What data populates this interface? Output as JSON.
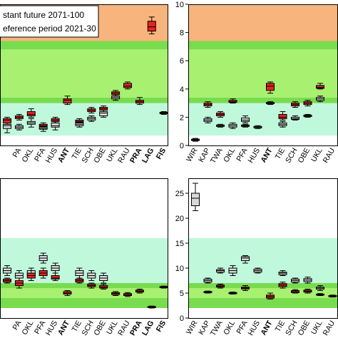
{
  "legend": {
    "placement": "top-left of first panel",
    "entries": [
      {
        "label": "stant future 2071-100",
        "color": "#e8231f"
      },
      {
        "label": "eference period 2021-30",
        "color": "#d9d9d9"
      }
    ]
  },
  "colors": {
    "zone_orange": "#f7b47c",
    "zone_green_light": "#a8f070",
    "zone_green_mid": "#78dc4e",
    "zone_mint": "#c0f8dc",
    "box_future": "#e8231f",
    "box_reference": "#d9d9d9"
  },
  "chart_data": [
    {
      "type": "box",
      "panel": "top-left",
      "ylim": [
        0,
        10
      ],
      "yticks": [],
      "grid": false,
      "bands": [
        {
          "from": 0.7,
          "to": 3.0,
          "color": "#c0f8dc"
        },
        {
          "from": 3.0,
          "to": 3.4,
          "color": "#78dc4e"
        },
        {
          "from": 3.4,
          "to": 6.8,
          "color": "#a8f070"
        },
        {
          "from": 6.8,
          "to": 7.4,
          "color": "#78dc4e"
        },
        {
          "from": 7.4,
          "to": 10,
          "color": "#f7b47c"
        }
      ],
      "categories": [
        {
          "label": "",
          "bold": false
        },
        {
          "label": "PA",
          "bold": false
        },
        {
          "label": "OKL",
          "bold": false
        },
        {
          "label": "PFA",
          "bold": false
        },
        {
          "label": "HUS",
          "bold": false
        },
        {
          "label": "ANT",
          "bold": true
        },
        {
          "label": "TIE",
          "bold": false
        },
        {
          "label": "SCH",
          "bold": false
        },
        {
          "label": "OBE",
          "bold": false
        },
        {
          "label": "UKL",
          "bold": false
        },
        {
          "label": "RAU",
          "bold": false
        },
        {
          "label": "PRA",
          "bold": true
        },
        {
          "label": "LAG",
          "bold": true
        },
        {
          "label": "FIS",
          "bold": true
        }
      ],
      "series": [
        {
          "kind": "reference",
          "boxes": [
            [
              0.9,
              1.2,
              1.4,
              1.5,
              1.7
            ],
            [
              1.1,
              1.2,
              1.3,
              1.4,
              1.5
            ],
            [
              1.3,
              1.5,
              1.6,
              1.7,
              1.9
            ],
            [
              1.0,
              1.15,
              1.2,
              1.3,
              1.4
            ],
            [
              1.1,
              1.3,
              1.4,
              1.6,
              1.7
            ],
            null,
            [
              1.3,
              1.4,
              1.5,
              1.6,
              1.7
            ],
            [
              1.7,
              1.8,
              1.9,
              2.0,
              2.1
            ],
            [
              2.0,
              2.1,
              2.3,
              2.4,
              2.5
            ],
            [
              3.2,
              3.3,
              3.4,
              3.5,
              3.6
            ],
            null,
            null,
            null,
            null
          ]
        },
        {
          "kind": "future",
          "boxes": [
            [
              1.5,
              1.6,
              1.8,
              1.9,
              2.0
            ],
            [
              1.8,
              1.9,
              2.0,
              2.1,
              2.2
            ],
            [
              2.0,
              2.1,
              2.2,
              2.4,
              2.6
            ],
            [
              1.3,
              1.35,
              1.4,
              1.5,
              1.6
            ],
            [
              1.6,
              1.7,
              1.8,
              1.9,
              2.0
            ],
            [
              2.9,
              3.0,
              3.2,
              3.3,
              3.5
            ],
            [
              1.6,
              1.65,
              1.7,
              1.8,
              1.9
            ],
            [
              2.3,
              2.4,
              2.5,
              2.6,
              2.7
            ],
            [
              2.4,
              2.5,
              2.6,
              2.7,
              2.8
            ],
            [
              3.5,
              3.6,
              3.7,
              3.8,
              3.9
            ],
            [
              4.0,
              4.1,
              4.2,
              4.4,
              4.5
            ],
            [
              2.9,
              3.0,
              3.1,
              3.2,
              3.4
            ],
            [
              7.9,
              8.1,
              8.4,
              8.8,
              9.1
            ],
            [
              2.2,
              2.25,
              2.3,
              2.35,
              2.4
            ]
          ]
        }
      ]
    },
    {
      "type": "box",
      "panel": "top-right",
      "ylim": [
        0,
        10
      ],
      "yticks": [
        0,
        2,
        4,
        6,
        8,
        10
      ],
      "grid": false,
      "bands": [
        {
          "from": 0.7,
          "to": 3.0,
          "color": "#c0f8dc"
        },
        {
          "from": 3.0,
          "to": 3.4,
          "color": "#78dc4e"
        },
        {
          "from": 3.4,
          "to": 6.8,
          "color": "#a8f070"
        },
        {
          "from": 6.8,
          "to": 7.4,
          "color": "#78dc4e"
        },
        {
          "from": 7.4,
          "to": 10,
          "color": "#f7b47c"
        }
      ],
      "categories": [
        {
          "label": "WIR",
          "bold": false
        },
        {
          "label": "KAP",
          "bold": false
        },
        {
          "label": "TWA",
          "bold": false
        },
        {
          "label": "OKL",
          "bold": false
        },
        {
          "label": "PFA",
          "bold": false
        },
        {
          "label": "HUS",
          "bold": false
        },
        {
          "label": "ANT",
          "bold": true
        },
        {
          "label": "TIE",
          "bold": false
        },
        {
          "label": "SCH",
          "bold": false
        },
        {
          "label": "OBE",
          "bold": false
        },
        {
          "label": "UKL",
          "bold": false
        },
        {
          "label": "RAU",
          "bold": false
        }
      ],
      "series": [
        {
          "kind": "reference",
          "boxes": [
            [
              0.3,
              0.35,
              0.4,
              0.45,
              0.5
            ],
            [
              1.6,
              1.7,
              1.8,
              1.9,
              2.0
            ],
            [
              1.3,
              1.35,
              1.4,
              1.45,
              1.5
            ],
            [
              1.2,
              1.3,
              1.4,
              1.5,
              1.6
            ],
            [
              1.6,
              1.7,
              1.8,
              1.95,
              2.1
            ],
            [
              1.2,
              1.25,
              1.3,
              1.35,
              1.4
            ],
            [
              2.9,
              2.95,
              3.0,
              3.05,
              3.1
            ],
            [
              1.3,
              1.4,
              1.5,
              1.6,
              1.7
            ],
            [
              1.8,
              1.85,
              1.9,
              2.0,
              2.1
            ],
            [
              2.0,
              2.05,
              2.1,
              2.15,
              2.2
            ],
            [
              3.1,
              3.2,
              3.3,
              3.4,
              3.5
            ],
            null
          ]
        },
        {
          "kind": "future",
          "boxes": [
            null,
            [
              2.7,
              2.8,
              2.9,
              3.0,
              3.1
            ],
            [
              2.0,
              2.1,
              2.2,
              2.3,
              2.4
            ],
            [
              3.0,
              3.05,
              3.1,
              3.2,
              3.3
            ],
            [
              1.3,
              1.35,
              1.4,
              1.45,
              1.5
            ],
            null,
            [
              3.7,
              3.9,
              4.2,
              4.4,
              4.5
            ],
            [
              1.8,
              1.9,
              2.0,
              2.2,
              2.4
            ],
            [
              2.7,
              2.8,
              2.9,
              3.0,
              3.1
            ],
            [
              2.8,
              2.9,
              3.0,
              3.1,
              3.2
            ],
            [
              4.0,
              4.05,
              4.1,
              4.25,
              4.4
            ],
            null
          ]
        }
      ]
    },
    {
      "type": "box",
      "panel": "bottom-left",
      "ylim": [
        0,
        28
      ],
      "yticks": [],
      "grid": false,
      "bands": [
        {
          "from": 2.0,
          "to": 4.0,
          "color": "#78dc4e"
        },
        {
          "from": 4.0,
          "to": 6.0,
          "color": "#a8f070"
        },
        {
          "from": 6.0,
          "to": 7.0,
          "color": "#78dc4e"
        },
        {
          "from": 7.0,
          "to": 16.0,
          "color": "#c0f8dc"
        }
      ],
      "categories": [
        {
          "label": "",
          "bold": false
        },
        {
          "label": "PA",
          "bold": false
        },
        {
          "label": "OKL",
          "bold": false
        },
        {
          "label": "PFA",
          "bold": false
        },
        {
          "label": "HUS",
          "bold": false
        },
        {
          "label": "ANT",
          "bold": true
        },
        {
          "label": "TIE",
          "bold": false
        },
        {
          "label": "SCH",
          "bold": false
        },
        {
          "label": "OBE",
          "bold": false
        },
        {
          "label": "UKL",
          "bold": false
        },
        {
          "label": "RAU",
          "bold": false
        },
        {
          "label": "PRA",
          "bold": true
        },
        {
          "label": "LAG",
          "bold": true
        },
        {
          "label": "FIS",
          "bold": true
        }
      ],
      "series": [
        {
          "kind": "reference",
          "boxes": [
            [
              8.5,
              9.0,
              9.5,
              10.0,
              10.5
            ],
            [
              7.5,
              8.0,
              8.5,
              9.0,
              9.5
            ],
            [
              8.0,
              8.5,
              9.0,
              9.5,
              10.0
            ],
            [
              11.0,
              11.5,
              12.0,
              12.5,
              13.0
            ],
            [
              9.0,
              9.5,
              10.0,
              10.5,
              11.0
            ],
            null,
            [
              8.0,
              8.5,
              9.0,
              9.5,
              10.0
            ],
            [
              7.5,
              8.0,
              8.5,
              9.0,
              9.5
            ],
            [
              7.0,
              7.5,
              8.0,
              8.5,
              9.0
            ],
            null,
            null,
            null,
            null,
            null
          ]
        },
        {
          "kind": "future",
          "boxes": [
            [
              7.0,
              7.2,
              7.5,
              7.8,
              8.0
            ],
            [
              6.0,
              6.5,
              7.0,
              7.5,
              8.0
            ],
            [
              7.5,
              8.0,
              8.5,
              9.0,
              9.5
            ],
            [
              8.0,
              8.5,
              9.0,
              9.5,
              10.0
            ],
            [
              7.5,
              7.8,
              8.0,
              8.5,
              9.0
            ],
            [
              4.5,
              4.8,
              5.0,
              5.3,
              5.5
            ],
            [
              7.0,
              7.2,
              7.5,
              7.8,
              8.0
            ],
            [
              6.0,
              6.3,
              6.5,
              6.8,
              7.0
            ],
            [
              5.8,
              6.0,
              6.2,
              6.5,
              6.8
            ],
            [
              4.5,
              4.7,
              4.9,
              5.1,
              5.3
            ],
            [
              4.3,
              4.5,
              4.7,
              4.9,
              5.1
            ],
            [
              5.0,
              5.2,
              5.4,
              5.6,
              5.8
            ],
            [
              2.0,
              2.1,
              2.2,
              2.3,
              2.4
            ],
            [
              6.0,
              6.1,
              6.2,
              6.3,
              6.4
            ]
          ]
        }
      ]
    },
    {
      "type": "box",
      "panel": "bottom-right",
      "ylim": [
        0,
        28
      ],
      "yticks": [
        0,
        5,
        10,
        15,
        20,
        25
      ],
      "grid": false,
      "bands": [
        {
          "from": 2.0,
          "to": 4.0,
          "color": "#78dc4e"
        },
        {
          "from": 4.0,
          "to": 6.0,
          "color": "#a8f070"
        },
        {
          "from": 6.0,
          "to": 7.0,
          "color": "#78dc4e"
        },
        {
          "from": 7.0,
          "to": 16.0,
          "color": "#c0f8dc"
        }
      ],
      "categories": [
        {
          "label": "WIR",
          "bold": false
        },
        {
          "label": "KAP",
          "bold": false
        },
        {
          "label": "TWA",
          "bold": false
        },
        {
          "label": "OKL",
          "bold": false
        },
        {
          "label": "PFA",
          "bold": false
        },
        {
          "label": "HUS",
          "bold": false
        },
        {
          "label": "ANT",
          "bold": true
        },
        {
          "label": "TIE",
          "bold": false
        },
        {
          "label": "SCH",
          "bold": false
        },
        {
          "label": "OBE",
          "bold": false
        },
        {
          "label": "UKL",
          "bold": false
        },
        {
          "label": "RAU",
          "bold": false
        }
      ],
      "series": [
        {
          "kind": "reference",
          "boxes": [
            [
              21.5,
              22.5,
              24.0,
              25.0,
              27.0
            ],
            [
              7.0,
              7.2,
              7.5,
              7.8,
              8.0
            ],
            [
              9.0,
              9.2,
              9.5,
              9.7,
              10.0
            ],
            [
              8.5,
              9.0,
              9.5,
              10.0,
              10.5
            ],
            [
              11.0,
              11.5,
              12.0,
              12.3,
              12.5
            ],
            [
              9.0,
              9.2,
              9.5,
              9.8,
              10.0
            ],
            null,
            [
              8.5,
              8.7,
              9.0,
              9.2,
              9.5
            ],
            [
              7.0,
              7.2,
              7.5,
              7.8,
              8.0
            ],
            [
              7.0,
              7.3,
              7.6,
              7.9,
              8.2
            ],
            [
              5.5,
              5.8,
              6.0,
              6.2,
              6.5
            ],
            null
          ]
        },
        {
          "kind": "future",
          "boxes": [
            null,
            [
              5.0,
              5.1,
              5.2,
              5.3,
              5.4
            ],
            [
              6.0,
              6.2,
              6.4,
              6.6,
              6.8
            ],
            [
              4.8,
              4.9,
              5.0,
              5.1,
              5.2
            ],
            [
              5.5,
              5.8,
              6.0,
              6.2,
              6.5
            ],
            null,
            [
              3.8,
              4.0,
              4.3,
              4.6,
              5.0
            ],
            [
              6.0,
              6.3,
              6.6,
              6.9,
              7.2
            ],
            [
              5.0,
              5.1,
              5.3,
              5.5,
              5.7
            ],
            [
              5.0,
              5.2,
              5.4,
              5.6,
              5.8
            ],
            [
              4.5,
              4.6,
              4.7,
              4.8,
              4.9
            ],
            [
              4.2,
              4.3,
              4.4,
              4.5,
              4.6
            ]
          ]
        }
      ]
    }
  ]
}
